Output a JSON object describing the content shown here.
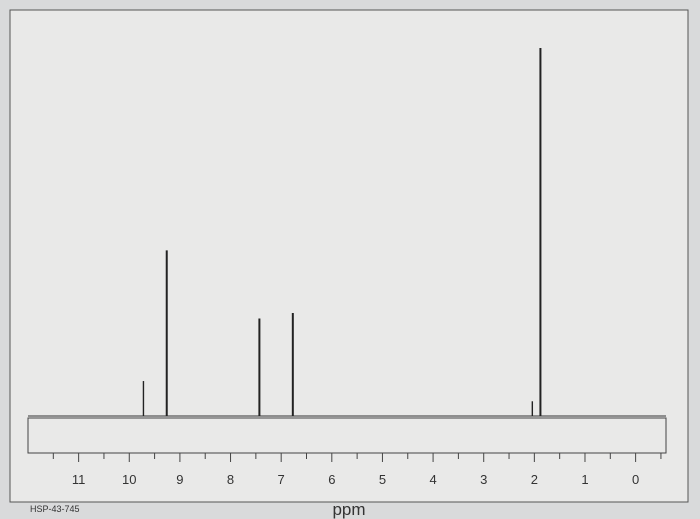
{
  "chart_data": {
    "type": "line",
    "title": "",
    "xlabel": "ppm",
    "ylabel": "",
    "xlim": [
      12.0,
      -0.6
    ],
    "x_reversed": true,
    "ylim": [
      0,
      100
    ],
    "grid": false,
    "x_ticks": [
      11,
      10,
      9,
      8,
      7,
      6,
      5,
      4,
      3,
      2,
      1,
      0
    ],
    "x_tick_labels": [
      "11",
      "10",
      "9",
      "8",
      "7",
      "6",
      "5",
      "4",
      "3",
      "2",
      "1",
      "0"
    ],
    "annotation": "HSP-43-745",
    "series": [
      {
        "peaks": [
          {
            "ppm": 9.72,
            "height": 9.5
          },
          {
            "ppm": 9.26,
            "height": 45.0
          },
          {
            "ppm": 7.43,
            "height": 26.5
          },
          {
            "ppm": 6.77,
            "height": 28.0
          },
          {
            "ppm": 2.04,
            "height": 4.0
          },
          {
            "ppm": 1.88,
            "height": 100.0
          }
        ]
      }
    ]
  }
}
